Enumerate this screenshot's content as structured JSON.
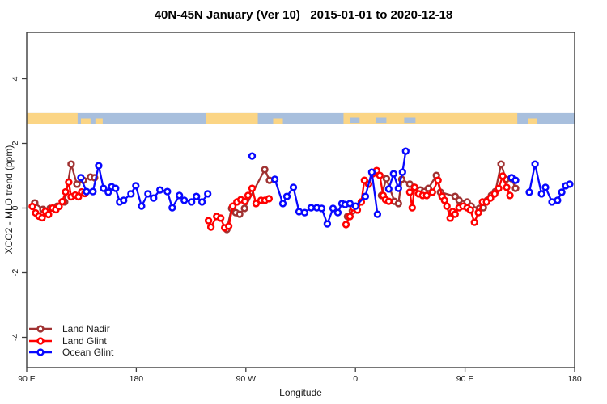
{
  "title": "40N-45N January (Ver 10)   2015-01-01 to 2020-12-18",
  "axes": {
    "xlabel": "Longitude",
    "ylabel": "XCO2 - MLO trend (ppm)"
  },
  "legend": {
    "items": [
      {
        "label": "Land Nadir",
        "color": "#A03232"
      },
      {
        "label": "Land Glint",
        "color": "#FF0000"
      },
      {
        "label": "Ocean Glint",
        "color": "#0808FF"
      }
    ]
  },
  "colors": {
    "land_band": "#FBD585",
    "ocean_band": "#A8BFDD",
    "axis": "#3C3C3C",
    "tick_text": "#1a1a1a",
    "marker_fill": "#ffffff"
  },
  "chart_data": {
    "type": "line",
    "title": "40N-45N January (Ver 10)   2015-01-01 to 2020-12-18",
    "xlabel": "Longitude",
    "ylabel": "XCO2 - MLO trend (ppm)",
    "note_axis": "x axis wraps eastward from 90E through 180, 90W, 0, 90E to 180 (450 deg span); pos = degrees east of 90E along axis",
    "x_axis": {
      "range_deg": [
        0,
        450
      ],
      "ticks": [
        {
          "pos": 0,
          "label": "90 E"
        },
        {
          "pos": 90,
          "label": "180"
        },
        {
          "pos": 180,
          "label": "90 W"
        },
        {
          "pos": 270,
          "label": "0"
        },
        {
          "pos": 360,
          "label": "90 E"
        },
        {
          "pos": 450,
          "label": "180"
        }
      ]
    },
    "y_axis": {
      "range": [
        -4.95,
        5.45
      ],
      "ticks": [
        {
          "pos": -4,
          "label": "-4"
        },
        {
          "pos": -2,
          "label": "-2"
        },
        {
          "pos": 0,
          "label": "0"
        },
        {
          "pos": 2,
          "label": "2"
        },
        {
          "pos": 4,
          "label": "4"
        }
      ]
    },
    "land_ocean_band": {
      "description": "land/ocean strip for 40N-45N drawn near y=2.78 ppm",
      "top_ppm": 2.94,
      "bottom_ppm": 2.61,
      "ocean_range": [
        0,
        450
      ],
      "land_segments": [
        {
          "from": 0,
          "to": 41.8,
          "h": "full"
        },
        {
          "from": 44.5,
          "to": 52.4,
          "h": "bottom"
        },
        {
          "from": 56.4,
          "to": 62.4,
          "h": "bottom"
        },
        {
          "from": 147.3,
          "to": 189.8,
          "h": "full"
        },
        {
          "from": 202.4,
          "to": 210.4,
          "h": "bottom"
        },
        {
          "from": 260.2,
          "to": 402.9,
          "h": "full"
        },
        {
          "from": 411.5,
          "to": 418.8,
          "h": "bottom"
        }
      ],
      "ocean_holes": [
        {
          "from": 265.5,
          "to": 273.4
        },
        {
          "from": 286.7,
          "to": 295.4
        },
        {
          "from": 310.0,
          "to": 319.3
        }
      ]
    },
    "series": [
      {
        "name": "Land Nadir",
        "color": "#A03232",
        "segments": [
          [
            [
              6.6,
              0.16
            ],
            [
              13.3,
              -0.04
            ],
            [
              19.2,
              -0.01
            ],
            [
              25.2,
              0.06
            ],
            [
              31.2,
              0.19
            ],
            [
              36.5,
              1.36
            ],
            [
              41.2,
              0.74
            ],
            [
              46.5,
              0.86
            ],
            [
              52.4,
              0.96
            ],
            [
              55.8,
              0.94
            ]
          ],
          [
            [
              164.4,
              -0.66
            ],
            [
              168.3,
              -0.01
            ],
            [
              171.6,
              -0.14
            ],
            [
              174.9,
              -0.19
            ],
            [
              178.9,
              -0.01
            ],
            [
              195.5,
              1.19
            ],
            [
              199.4,
              0.86
            ]
          ],
          [
            [
              263.5,
              -0.26
            ],
            [
              267.5,
              -0.09
            ]
          ],
          [
            [
              291.4,
              0.39
            ],
            [
              295.4,
              0.91
            ],
            [
              302.0,
              0.21
            ],
            [
              305.3,
              0.14
            ],
            [
              308.0,
              0.89
            ],
            [
              314.6,
              0.74
            ],
            [
              318.6,
              0.64
            ],
            [
              323.2,
              0.56
            ],
            [
              326.5,
              0.51
            ],
            [
              329.9,
              0.61
            ],
            [
              336.5,
              1.01
            ],
            [
              339.8,
              0.49
            ],
            [
              351.8,
              0.36
            ],
            [
              355.1,
              0.24
            ],
            [
              361.7,
              0.19
            ],
            [
              365.0,
              0.06
            ],
            [
              371.7,
              -0.01
            ],
            [
              375.0,
              0.01
            ],
            [
              378.3,
              0.24
            ],
            [
              381.6,
              0.39
            ],
            [
              384.9,
              0.51
            ],
            [
              389.6,
              1.36
            ],
            [
              393.6,
              0.89
            ],
            [
              398.2,
              0.91
            ],
            [
              401.5,
              0.61
            ]
          ]
        ]
      },
      {
        "name": "Land Glint",
        "color": "#FF0000",
        "segments": [
          [
            [
              4.6,
              0.05
            ],
            [
              7.3,
              -0.15
            ],
            [
              10.0,
              -0.25
            ],
            [
              12.6,
              -0.3
            ],
            [
              15.3,
              -0.1
            ],
            [
              17.9,
              -0.2
            ],
            [
              21.2,
              0.0
            ],
            [
              23.9,
              -0.05
            ],
            [
              26.6,
              0.05
            ],
            [
              29.2,
              0.2
            ],
            [
              31.9,
              0.5
            ],
            [
              34.5,
              0.8
            ],
            [
              36.5,
              0.35
            ],
            [
              39.8,
              0.4
            ],
            [
              42.5,
              0.35
            ],
            [
              45.1,
              0.5
            ],
            [
              47.8,
              0.45
            ]
          ],
          [
            [
              149.3,
              -0.39
            ],
            [
              151.3,
              -0.59
            ],
            [
              156.0,
              -0.26
            ],
            [
              159.3,
              -0.31
            ],
            [
              162.6,
              -0.61
            ],
            [
              165.9,
              -0.56
            ],
            [
              169.2,
              0.06
            ],
            [
              172.6,
              0.19
            ],
            [
              175.9,
              0.26
            ],
            [
              179.2,
              0.21
            ],
            [
              181.8,
              0.39
            ],
            [
              185.1,
              0.61
            ],
            [
              188.4,
              0.14
            ],
            [
              192.4,
              0.24
            ],
            [
              195.7,
              0.24
            ],
            [
              199.0,
              0.29
            ]
          ],
          [
            [
              262.2,
              -0.51
            ],
            [
              265.5,
              -0.26
            ],
            [
              268.2,
              0.01
            ],
            [
              271.5,
              -0.06
            ],
            [
              274.8,
              0.19
            ],
            [
              277.4,
              0.86
            ],
            [
              280.8,
              0.74
            ],
            [
              284.1,
              1.06
            ],
            [
              287.4,
              1.16
            ],
            [
              290.0,
              1.01
            ],
            [
              292.7,
              0.39
            ],
            [
              294.7,
              0.26
            ],
            [
              297.3,
              0.21
            ]
          ],
          [
            [
              314.6,
              0.49
            ],
            [
              316.6,
              0.01
            ],
            [
              318.6,
              0.64
            ],
            [
              321.9,
              0.44
            ],
            [
              325.2,
              0.39
            ],
            [
              328.5,
              0.39
            ],
            [
              333.2,
              0.49
            ],
            [
              337.8,
              0.86
            ],
            [
              341.1,
              0.36
            ],
            [
              343.1,
              0.24
            ],
            [
              345.1,
              0.06
            ],
            [
              347.8,
              -0.31
            ],
            [
              349.8,
              -0.11
            ],
            [
              351.8,
              -0.19
            ],
            [
              355.1,
              0.01
            ],
            [
              358.4,
              0.06
            ],
            [
              361.7,
              0.01
            ],
            [
              364.4,
              -0.06
            ],
            [
              367.7,
              -0.44
            ],
            [
              371.0,
              -0.14
            ],
            [
              374.3,
              0.19
            ],
            [
              377.6,
              0.19
            ],
            [
              380.9,
              0.31
            ],
            [
              384.3,
              0.44
            ],
            [
              387.6,
              0.61
            ],
            [
              390.9,
              0.99
            ],
            [
              394.2,
              0.64
            ],
            [
              396.9,
              0.39
            ]
          ]
        ]
      },
      {
        "name": "Ocean Glint",
        "color": "#0808FF",
        "segments": [
          [
            [
              44.5,
              0.94
            ],
            [
              49.1,
              0.51
            ],
            [
              54.4,
              0.51
            ],
            [
              59.1,
              1.31
            ],
            [
              63.1,
              0.61
            ],
            [
              67.0,
              0.49
            ],
            [
              69.7,
              0.66
            ],
            [
              73.0,
              0.61
            ],
            [
              76.3,
              0.19
            ],
            [
              79.6,
              0.24
            ],
            [
              85.6,
              0.44
            ],
            [
              89.6,
              0.69
            ],
            [
              94.3,
              0.06
            ],
            [
              99.6,
              0.44
            ],
            [
              104.2,
              0.31
            ],
            [
              109.5,
              0.56
            ],
            [
              115.5,
              0.51
            ],
            [
              119.5,
              0.01
            ],
            [
              125.4,
              0.39
            ],
            [
              129.4,
              0.24
            ],
            [
              135.4,
              0.19
            ],
            [
              139.4,
              0.36
            ],
            [
              144.0,
              0.19
            ],
            [
              148.7,
              0.44
            ]
          ],
          [
            [
              185.1,
              1.61
            ]
          ],
          [
            [
              203.8,
              0.89
            ],
            [
              210.4,
              0.14
            ],
            [
              213.7,
              0.36
            ],
            [
              219.0,
              0.64
            ],
            [
              223.7,
              -0.11
            ],
            [
              228.3,
              -0.14
            ],
            [
              233.6,
              0.01
            ],
            [
              238.3,
              0.01
            ],
            [
              242.3,
              -0.01
            ],
            [
              246.9,
              -0.49
            ],
            [
              251.6,
              -0.01
            ],
            [
              255.5,
              -0.14
            ],
            [
              258.9,
              0.14
            ],
            [
              261.5,
              0.11
            ],
            [
              265.5,
              0.14
            ],
            [
              270.1,
              0.06
            ],
            [
              278.1,
              0.36
            ],
            [
              283.4,
              1.11
            ],
            [
              288.1,
              -0.19
            ]
          ],
          [
            [
              297.3,
              0.59
            ],
            [
              301.3,
              1.06
            ],
            [
              305.3,
              0.61
            ],
            [
              308.6,
              1.11
            ],
            [
              311.3,
              1.76
            ]
          ],
          [
            [
              398.2,
              0.94
            ],
            [
              401.5,
              0.86
            ]
          ],
          [
            [
              412.8,
              0.49
            ],
            [
              417.5,
              1.36
            ],
            [
              422.8,
              0.44
            ],
            [
              426.1,
              0.64
            ],
            [
              431.4,
              0.19
            ],
            [
              436.0,
              0.24
            ],
            [
              439.4,
              0.49
            ],
            [
              442.7,
              0.69
            ],
            [
              446.0,
              0.74
            ]
          ]
        ]
      }
    ]
  }
}
